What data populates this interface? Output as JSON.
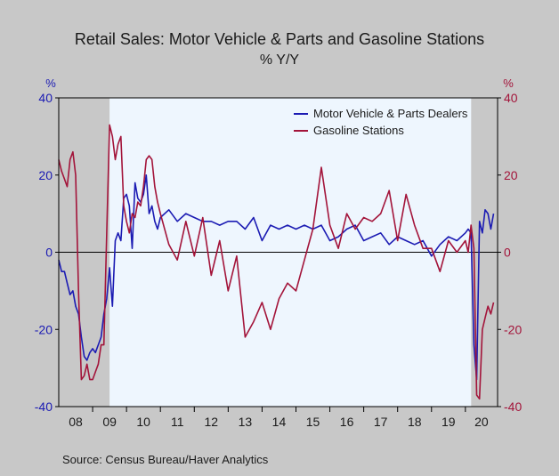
{
  "chart_data": {
    "type": "line",
    "title": "Retail Sales: Motor Vehicle & Parts and Gasoline Stations",
    "subtitle": "% Y/Y",
    "left_axis_unit": "%",
    "right_axis_unit": "%",
    "source": "Source:  Census Bureau/Haver Analytics",
    "ylim": [
      -40,
      40
    ],
    "y_ticks": [
      "40",
      "20",
      "0",
      "-20",
      "-40"
    ],
    "x_start": 2008.0,
    "x_end": 2020.95,
    "x_tick_labels": [
      "08",
      "09",
      "10",
      "11",
      "12",
      "13",
      "14",
      "15",
      "16",
      "17",
      "18",
      "19",
      "20"
    ],
    "recession_bands": [
      [
        2008.0,
        2009.5
      ],
      [
        2020.17,
        2020.95
      ]
    ],
    "zero_line": true,
    "legend_position": "top-right",
    "colors": {
      "background": "#c8c8c8",
      "plot_area": "#eef6fe",
      "recession": "#c8c8c8",
      "motor": "#1b1bb3",
      "gasoline": "#a3143a",
      "left_axis": "#1b1bb3",
      "right_axis": "#a3143a",
      "text": "#1a1a1a"
    },
    "series": [
      {
        "name": "Motor Vehicle & Parts Dealers",
        "axis": "left",
        "color": "#1b1bb3",
        "x": [
          2008.0,
          2008.083,
          2008.167,
          2008.25,
          2008.333,
          2008.417,
          2008.5,
          2008.583,
          2008.667,
          2008.75,
          2008.833,
          2008.917,
          2009.0,
          2009.083,
          2009.167,
          2009.25,
          2009.333,
          2009.417,
          2009.5,
          2009.583,
          2009.667,
          2009.75,
          2009.833,
          2009.917,
          2010.0,
          2010.083,
          2010.167,
          2010.25,
          2010.333,
          2010.417,
          2010.5,
          2010.583,
          2010.667,
          2010.75,
          2010.833,
          2010.917,
          2011.0,
          2011.25,
          2011.5,
          2011.75,
          2012.0,
          2012.25,
          2012.5,
          2012.75,
          2013.0,
          2013.25,
          2013.5,
          2013.75,
          2014.0,
          2014.25,
          2014.5,
          2014.75,
          2015.0,
          2015.25,
          2015.5,
          2015.75,
          2016.0,
          2016.25,
          2016.5,
          2016.75,
          2017.0,
          2017.25,
          2017.5,
          2017.75,
          2018.0,
          2018.25,
          2018.5,
          2018.75,
          2019.0,
          2019.25,
          2019.5,
          2019.75,
          2020.0,
          2020.083,
          2020.167,
          2020.25,
          2020.333,
          2020.417,
          2020.5,
          2020.583,
          2020.667,
          2020.75,
          2020.833
        ],
        "values": [
          -2,
          -5,
          -5,
          -8,
          -11,
          -10,
          -14,
          -16,
          -22,
          -27,
          -28,
          -26,
          -25,
          -26,
          -24,
          -22,
          -16,
          -12,
          -4,
          -14,
          3,
          5,
          3,
          14,
          15,
          12,
          1,
          18,
          14,
          13,
          15,
          20,
          10,
          12,
          8,
          6,
          9,
          11,
          8,
          10,
          9,
          8,
          8,
          7,
          8,
          8,
          6,
          9,
          3,
          7,
          6,
          7,
          6,
          7,
          6,
          7,
          3,
          4,
          6,
          7,
          3,
          4,
          5,
          2,
          4,
          3,
          2,
          3,
          -1,
          2,
          4,
          3,
          5,
          6,
          5,
          -24,
          -33,
          8,
          5,
          11,
          10,
          6,
          10
        ]
      },
      {
        "name": "Gasoline Stations",
        "axis": "right",
        "color": "#a3143a",
        "x": [
          2008.0,
          2008.083,
          2008.167,
          2008.25,
          2008.333,
          2008.417,
          2008.5,
          2008.583,
          2008.667,
          2008.75,
          2008.833,
          2008.917,
          2009.0,
          2009.083,
          2009.167,
          2009.25,
          2009.333,
          2009.417,
          2009.5,
          2009.583,
          2009.667,
          2009.75,
          2009.833,
          2009.917,
          2010.0,
          2010.083,
          2010.167,
          2010.25,
          2010.333,
          2010.417,
          2010.5,
          2010.583,
          2010.667,
          2010.75,
          2010.833,
          2010.917,
          2011.0,
          2011.25,
          2011.5,
          2011.75,
          2012.0,
          2012.25,
          2012.5,
          2012.75,
          2013.0,
          2013.25,
          2013.5,
          2013.75,
          2014.0,
          2014.25,
          2014.5,
          2014.75,
          2015.0,
          2015.25,
          2015.5,
          2015.75,
          2016.0,
          2016.25,
          2016.5,
          2016.75,
          2017.0,
          2017.25,
          2017.5,
          2017.75,
          2018.0,
          2018.25,
          2018.5,
          2018.75,
          2019.0,
          2019.25,
          2019.5,
          2019.75,
          2020.0,
          2020.083,
          2020.167,
          2020.25,
          2020.333,
          2020.417,
          2020.5,
          2020.583,
          2020.667,
          2020.75,
          2020.833
        ],
        "values": [
          24,
          21,
          19,
          17,
          24,
          26,
          20,
          -10,
          -33,
          -32,
          -29,
          -33,
          -33,
          -31,
          -29,
          -24,
          -24,
          5,
          33,
          30,
          24,
          28,
          30,
          12,
          8,
          5,
          10,
          9,
          13,
          12,
          17,
          24,
          25,
          24,
          17,
          13,
          10,
          2,
          -2,
          8,
          -1,
          9,
          -6,
          3,
          -10,
          -1,
          -22,
          -18,
          -13,
          -20,
          -12,
          -8,
          -10,
          -2,
          6,
          22,
          7,
          1,
          10,
          6,
          9,
          8,
          10,
          16,
          3,
          15,
          7,
          1,
          1,
          -5,
          3,
          0,
          3,
          0,
          7,
          1,
          -37,
          -38,
          -20,
          -17,
          -14,
          -16,
          -13
        ]
      }
    ]
  }
}
